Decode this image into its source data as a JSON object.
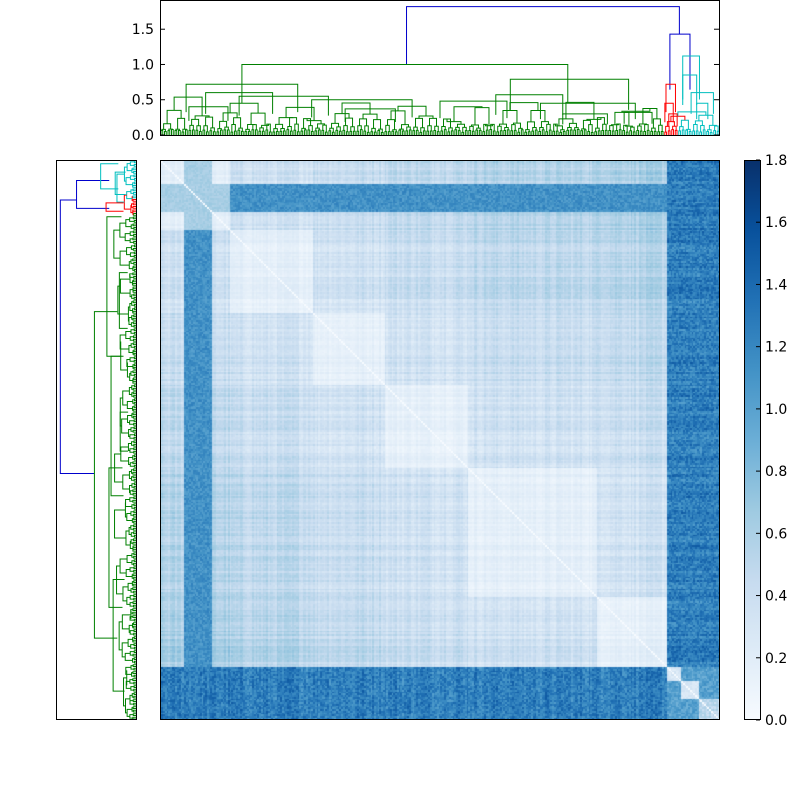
{
  "chart_data": [
    {
      "type": "dendrogram",
      "orientation": "top",
      "ylim": [
        0,
        1.9
      ],
      "yticks": [
        0.0,
        0.5,
        1.0,
        1.5
      ],
      "ytick_labels": [
        "0.0",
        "0.5",
        "1.0",
        "1.5"
      ],
      "colors": {
        "green": "#008000",
        "red": "#ff0000",
        "cyan": "#00bfbf",
        "blue": "#0000cc"
      },
      "merges": [
        {
          "color": "blue",
          "height": 1.82,
          "left_leaf_frac": 0.44,
          "right_leaf_frac": 0.929
        },
        {
          "color": "blue",
          "height": 1.43,
          "left_leaf_frac": 0.912,
          "right_leaf_frac": 0.948
        },
        {
          "color": "green",
          "height": 1.0,
          "left_leaf_frac": 0.145,
          "right_leaf_frac": 0.729
        },
        {
          "color": "green",
          "height": 0.79,
          "left_leaf_frac": 0.626,
          "right_leaf_frac": 0.838
        },
        {
          "color": "green",
          "height": 0.72,
          "left_leaf_frac": 0.045,
          "right_leaf_frac": 0.245
        },
        {
          "color": "cyan",
          "height": 1.12,
          "left_leaf_frac": 0.935,
          "right_leaf_frac": 0.965
        },
        {
          "color": "red",
          "height": 0.72,
          "left_leaf_frac": 0.905,
          "right_leaf_frac": 0.922
        }
      ]
    },
    {
      "type": "dendrogram",
      "orientation": "left",
      "colors": {
        "green": "#008000",
        "red": "#ff0000",
        "cyan": "#00bfbf",
        "blue": "#0000cc"
      },
      "merges": [
        {
          "color": "blue",
          "height": 1.82,
          "top_leaf_frac": 0.07,
          "bottom_leaf_frac": 0.56
        },
        {
          "color": "blue",
          "height": 1.43,
          "top_leaf_frac": 0.035,
          "bottom_leaf_frac": 0.085
        },
        {
          "color": "green",
          "height": 1.0,
          "top_leaf_frac": 0.27,
          "bottom_leaf_frac": 0.855
        }
      ]
    },
    {
      "type": "heatmap",
      "colormap": "Blues",
      "matrix_size": 320,
      "diagonal_value": 0.0,
      "cluster_boundaries_frac": [
        0.12,
        0.27,
        0.4,
        0.55,
        0.78,
        0.905,
        0.93,
        0.96
      ],
      "high_distance_block_frac": [
        0.905,
        1.0
      ]
    },
    {
      "type": "colorbar",
      "colormap": "Blues",
      "vmin": 0.0,
      "vmax": 1.8,
      "ticks": [
        0.0,
        0.2,
        0.4,
        0.6,
        0.8,
        1.0,
        1.2,
        1.4,
        1.6,
        1.8
      ],
      "tick_labels": [
        "0.0",
        "0.2",
        "0.4",
        "0.6",
        "0.8",
        "1.0",
        "1.2",
        "1.4",
        "1.6",
        "1.8"
      ]
    }
  ]
}
